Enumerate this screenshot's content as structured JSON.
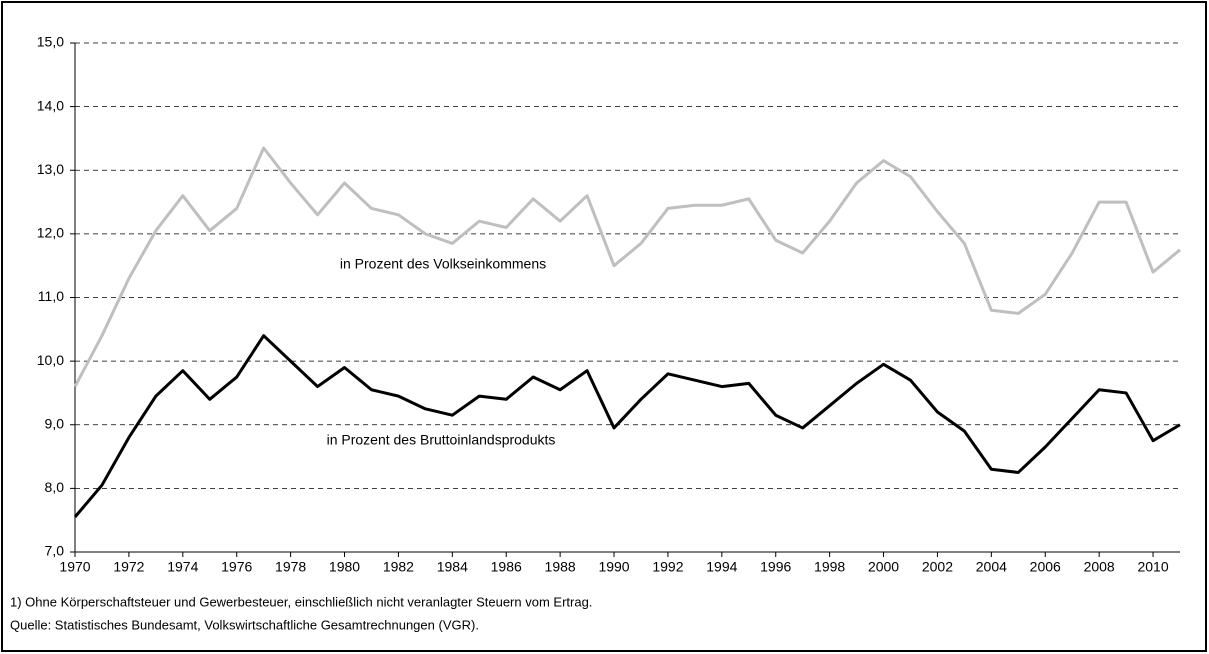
{
  "chart_data": {
    "type": "line",
    "x": [
      1970,
      1971,
      1972,
      1973,
      1974,
      1975,
      1976,
      1977,
      1978,
      1979,
      1980,
      1981,
      1982,
      1983,
      1984,
      1985,
      1986,
      1987,
      1988,
      1989,
      1990,
      1991,
      1992,
      1993,
      1994,
      1995,
      1996,
      1997,
      1998,
      1999,
      2000,
      2001,
      2002,
      2003,
      2004,
      2005,
      2006,
      2007,
      2008,
      2009,
      2010,
      2011
    ],
    "series": [
      {
        "name": "in Prozent des Volkseinkommens",
        "color": "#bfbfbf",
        "values": [
          9.6,
          10.4,
          11.3,
          12.05,
          12.6,
          12.05,
          12.4,
          13.35,
          12.8,
          12.3,
          12.8,
          12.4,
          12.3,
          12.0,
          11.85,
          12.2,
          12.1,
          12.55,
          12.2,
          12.6,
          11.5,
          11.85,
          12.4,
          12.45,
          12.45,
          12.55,
          11.9,
          11.7,
          12.2,
          12.8,
          13.15,
          12.9,
          12.35,
          11.85,
          10.8,
          10.75,
          11.05,
          11.7,
          12.5,
          12.5,
          11.4,
          11.75
        ]
      },
      {
        "name": "in Prozent des Bruttoinlandsprodukts",
        "color": "#000000",
        "values": [
          7.55,
          8.05,
          8.8,
          9.45,
          9.85,
          9.4,
          9.75,
          10.4,
          10.0,
          9.6,
          9.9,
          9.55,
          9.45,
          9.25,
          9.15,
          9.45,
          9.4,
          9.75,
          9.55,
          9.85,
          8.95,
          9.4,
          9.8,
          9.7,
          9.6,
          9.65,
          9.15,
          8.95,
          9.3,
          9.65,
          9.95,
          9.7,
          9.2,
          8.9,
          8.3,
          8.25,
          8.65,
          9.1,
          9.55,
          9.5,
          8.75,
          9.0
        ]
      }
    ],
    "xlim": [
      1970,
      2011
    ],
    "xticks": [
      1970,
      1972,
      1974,
      1976,
      1978,
      1980,
      1982,
      1984,
      1986,
      1988,
      1990,
      1992,
      1994,
      1996,
      1998,
      2000,
      2002,
      2004,
      2006,
      2008,
      2010
    ],
    "ylim": [
      7,
      15
    ],
    "yticks": [
      {
        "value": 7,
        "label": "7,0"
      },
      {
        "value": 8,
        "label": "8,0"
      },
      {
        "value": 9,
        "label": "9,0"
      },
      {
        "value": 10,
        "label": "10,0"
      },
      {
        "value": 11,
        "label": "11,0"
      },
      {
        "value": 12,
        "label": "12,0"
      },
      {
        "value": 13,
        "label": "13,0"
      },
      {
        "value": 14,
        "label": "14,0"
      },
      {
        "value": 15,
        "label": "15,0"
      }
    ],
    "grid": true,
    "notes": [
      "1) Ohne Körperschaftsteuer und Gewerbesteuer, einschließlich nicht veranlagter Steuern vom Ertrag.",
      "Quelle: Statistisches Bundesamt, Volkswirtschaftliche Gesamtrechnungen (VGR)."
    ]
  }
}
